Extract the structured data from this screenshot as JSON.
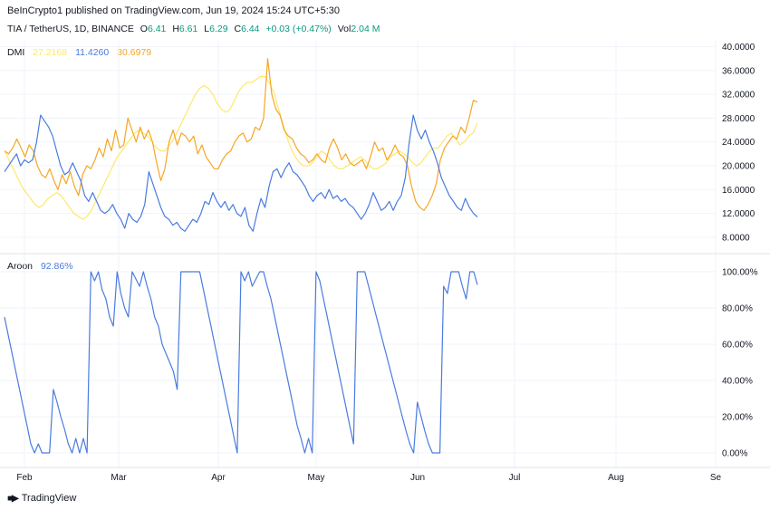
{
  "header": {
    "published": "BeInCrypto1 published on TradingView.com, Jun 19, 2024 15:24 UTC+5:30",
    "symbol": "TIA / TetherUS, 1D, BINANCE",
    "o_label": "O",
    "o_value": "6.41",
    "h_label": "H",
    "h_value": "6.61",
    "l_label": "L",
    "l_value": "6.29",
    "c_label": "C",
    "c_value": "6.44",
    "change": "+0.03 (+0.47%)",
    "vol_label": "Vol",
    "vol_value": "2.04 M"
  },
  "colors": {
    "adx": "#fce96a",
    "plus_di": "#f6a623",
    "minus_di": "#4a7be0",
    "aroon": "#4a7be0",
    "up": "#089981",
    "grid": "#f0f3fa"
  },
  "footer": {
    "brand": "TradingView",
    "logo_icon": "tradingview-logo-icon"
  },
  "chart_data": [
    {
      "type": "line",
      "title": "DMI",
      "legend_values": [
        "27.2168",
        "11.4260",
        "30.6979"
      ],
      "ylim": [
        6,
        41
      ],
      "yticks": [
        "40.0000",
        "36.0000",
        "32.0000",
        "28.0000",
        "24.0000",
        "20.0000",
        "16.0000",
        "12.0000",
        "8.0000"
      ],
      "ytick_values": [
        40,
        36,
        32,
        28,
        24,
        20,
        16,
        12,
        8
      ],
      "xticks": [
        "Feb",
        "Mar",
        "Apr",
        "May",
        "Jun",
        "Jul",
        "Aug",
        "Se"
      ],
      "series": [
        {
          "color_key": "adx",
          "values": [
            22.5,
            21,
            19.5,
            18,
            16.5,
            15.5,
            14.5,
            13.5,
            13,
            13.5,
            14.5,
            15,
            15.5,
            15,
            14,
            13,
            12,
            11.5,
            11,
            11.5,
            12.5,
            14,
            15.5,
            17,
            18.5,
            20,
            21.5,
            22.5,
            23.5,
            24.5,
            25.5,
            26,
            25.5,
            25,
            24,
            23,
            22.5,
            22.5,
            23.5,
            24.5,
            26,
            27.5,
            29,
            30.5,
            32,
            33,
            33.5,
            33,
            32,
            30.5,
            29.5,
            29,
            29.5,
            31,
            32.5,
            33.5,
            34,
            34,
            34.5,
            35,
            35,
            34,
            32.5,
            30,
            27.5,
            25,
            23,
            21.5,
            20.5,
            20,
            20,
            20.5,
            21.5,
            22.5,
            22,
            21,
            20,
            19.5,
            19.5,
            20,
            20.5,
            21,
            21.5,
            21,
            20,
            19.5,
            19.5,
            20,
            20.5,
            21.5,
            22,
            22.5,
            22,
            21.5,
            20.5,
            20,
            20.5,
            21.5,
            22.5,
            23,
            23,
            24,
            25,
            25.5,
            24.5,
            23.5,
            24,
            25,
            25.5,
            27.2
          ]
        },
        {
          "color_key": "plus_di",
          "values": [
            22.5,
            22,
            23,
            24.5,
            23,
            21.5,
            23.5,
            22.5,
            20,
            18.5,
            18,
            19.5,
            17.5,
            16,
            18.5,
            17,
            19,
            16.5,
            15,
            18.5,
            20,
            19.5,
            21,
            23,
            21.5,
            24.5,
            22.5,
            26,
            23,
            23.5,
            28,
            26,
            24,
            26.5,
            24.5,
            26,
            24,
            20.5,
            17.5,
            19.5,
            24,
            26,
            23.5,
            25.5,
            25,
            24,
            25,
            22,
            23.5,
            21.5,
            20.5,
            19.5,
            19.5,
            21,
            22,
            22.5,
            24,
            25,
            25.5,
            24,
            24.5,
            26.5,
            26,
            28,
            38,
            32,
            29.5,
            28.5,
            26,
            25,
            24.5,
            23,
            22,
            21.5,
            20.5,
            21,
            22,
            21,
            20.5,
            23,
            24.5,
            23,
            21,
            22,
            20.5,
            20,
            20.5,
            21,
            19.5,
            21.5,
            24,
            22.5,
            23,
            21,
            22,
            23.5,
            22,
            21.5,
            20,
            16.5,
            14,
            13,
            12.5,
            13.5,
            15,
            17,
            21,
            23,
            24,
            25,
            24.5,
            26.5,
            25.5,
            28,
            31,
            30.7
          ]
        },
        {
          "color_key": "minus_di",
          "values": [
            19,
            20,
            21,
            22,
            20,
            21,
            20.5,
            21,
            24,
            28.5,
            27.5,
            26.5,
            25,
            22.5,
            20,
            18.5,
            19,
            20.5,
            19,
            17.5,
            15,
            14,
            15.5,
            14,
            12.5,
            12,
            12.5,
            13.5,
            12,
            11,
            9.5,
            12,
            11,
            10.5,
            11.5,
            13.5,
            19,
            17,
            15,
            13,
            11.5,
            11,
            10,
            10.5,
            9.5,
            9,
            10,
            11,
            10.5,
            12,
            14,
            13.5,
            15.5,
            14,
            13,
            14,
            12.5,
            13.5,
            12,
            11.5,
            13,
            10,
            9,
            12,
            14.5,
            13,
            16.5,
            19,
            19.5,
            18,
            19.5,
            20.5,
            19,
            18.5,
            17.5,
            16.5,
            15,
            14,
            15,
            15.5,
            14.5,
            16,
            14.5,
            15,
            14,
            14.5,
            13.5,
            13,
            12,
            11,
            12,
            13.5,
            15.5,
            14,
            12.5,
            13,
            14,
            12.5,
            14,
            15,
            18,
            24,
            28.5,
            26,
            24.5,
            26,
            24,
            22.5,
            20.5,
            18,
            16.5,
            15,
            14,
            13,
            12.5,
            14.5,
            13,
            12,
            11.4
          ]
        }
      ]
    },
    {
      "type": "line",
      "title": "Aroon",
      "legend_values": [
        "92.86%"
      ],
      "ylim": [
        -5,
        105
      ],
      "yticks": [
        "100.00%",
        "80.00%",
        "60.00%",
        "40.00%",
        "20.00%",
        "0.00%"
      ],
      "ytick_values": [
        100,
        80,
        60,
        40,
        20,
        0
      ],
      "series": [
        {
          "color_key": "aroon",
          "values": [
            75,
            65,
            55,
            45,
            35,
            25,
            15,
            5,
            0,
            5,
            0,
            0,
            0,
            35,
            28,
            20,
            13,
            5,
            0,
            8,
            0,
            8,
            0,
            100,
            95,
            100,
            90,
            85,
            75,
            70,
            100,
            88,
            80,
            75,
            100,
            96,
            92,
            100,
            92,
            85,
            75,
            70,
            60,
            55,
            50,
            45,
            35,
            100,
            100,
            100,
            100,
            100,
            100,
            90,
            80,
            70,
            60,
            50,
            40,
            30,
            20,
            10,
            0,
            100,
            95,
            100,
            92,
            96,
            100,
            100,
            92,
            85,
            75,
            65,
            55,
            45,
            35,
            25,
            15,
            8,
            0,
            8,
            0,
            100,
            95,
            85,
            75,
            65,
            55,
            45,
            35,
            25,
            15,
            5,
            100,
            100,
            100,
            92,
            84,
            76,
            68,
            60,
            52,
            44,
            36,
            28,
            20,
            12,
            5,
            0,
            28,
            20,
            12,
            5,
            0,
            0,
            0,
            92,
            88,
            100,
            100,
            100,
            92,
            85,
            100,
            100,
            92.86
          ]
        }
      ]
    }
  ]
}
